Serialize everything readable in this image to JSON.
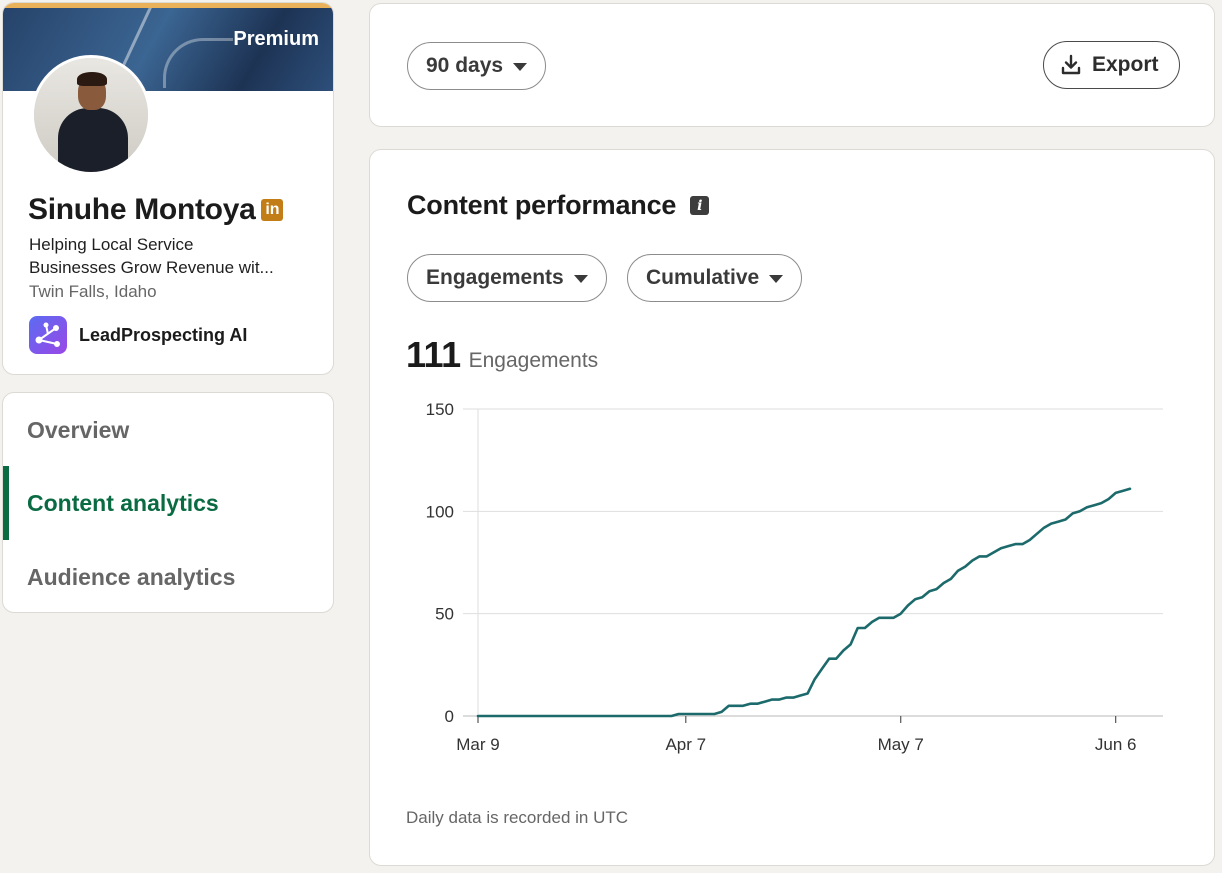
{
  "profile": {
    "badge": "Premium",
    "name": "Sinuhe Montoya",
    "linkedin_badge": "in",
    "headline_line1": "Helping Local Service",
    "headline_line2": "Businesses Grow Revenue wit...",
    "location": "Twin Falls, Idaho",
    "company": "LeadProspecting AI"
  },
  "nav": {
    "items": [
      {
        "label": "Overview"
      },
      {
        "label": "Content analytics",
        "active": true
      },
      {
        "label": "Audience analytics"
      }
    ]
  },
  "controls": {
    "range": "90 days",
    "export_label": "Export"
  },
  "performance": {
    "title": "Content performance",
    "info_glyph": "i",
    "metric": "Engagements",
    "mode": "Cumulative",
    "total_value": "111",
    "total_label": "Engagements",
    "footnote": "Daily data is recorded in UTC"
  },
  "colors": {
    "line": "#1c6a6b",
    "active_nav": "#0a6b43",
    "grid": "#dedede"
  },
  "icons": {
    "export": "download-icon",
    "caret": "caret-down-icon",
    "info": "info-icon",
    "company_logo": "network-nodes-icon"
  },
  "chart_data": {
    "type": "line",
    "xlabel": "",
    "ylabel": "",
    "ylim": [
      0,
      150
    ],
    "yticks": [
      0,
      50,
      100,
      150
    ],
    "xticks": [
      {
        "day": 0,
        "label": "Mar 9"
      },
      {
        "day": 29,
        "label": "Apr 7"
      },
      {
        "day": 59,
        "label": "May 7"
      },
      {
        "day": 89,
        "label": "Jun 6"
      }
    ],
    "grid": true,
    "series": [
      {
        "values": [
          0,
          0,
          0,
          0,
          0,
          0,
          0,
          0,
          0,
          0,
          0,
          0,
          0,
          0,
          0,
          0,
          0,
          0,
          0,
          0,
          0,
          0,
          0,
          0,
          0,
          0,
          0,
          0,
          1,
          1,
          1,
          1,
          1,
          1,
          2,
          5,
          5,
          5,
          6,
          6,
          7,
          8,
          8,
          9,
          9,
          10,
          11,
          18,
          23,
          28,
          28,
          32,
          35,
          43,
          43,
          46,
          48,
          48,
          48,
          50,
          54,
          57,
          58,
          61,
          62,
          65,
          67,
          71,
          73,
          76,
          78,
          78,
          80,
          82,
          83,
          84,
          84,
          86,
          89,
          92,
          94,
          95,
          96,
          99,
          100,
          102,
          103,
          104,
          106,
          109,
          110,
          111
        ]
      }
    ]
  }
}
